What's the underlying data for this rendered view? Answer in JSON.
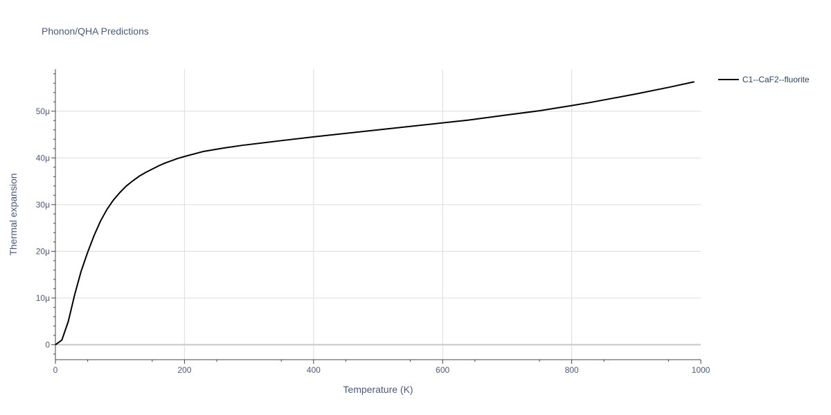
{
  "chart_data": {
    "type": "line",
    "title": "Phonon/QHA Predictions",
    "xlabel": "Temperature (K)",
    "ylabel": "Thermal expansion",
    "xlim": [
      0,
      1000
    ],
    "ylim": [
      -3.2e-06,
      5.9e-05
    ],
    "grid": true,
    "legend_position": "top-right outside",
    "x_ticks": [
      {
        "value": 0,
        "label": "0"
      },
      {
        "value": 200,
        "label": "200"
      },
      {
        "value": 400,
        "label": "400"
      },
      {
        "value": 600,
        "label": "600"
      },
      {
        "value": 800,
        "label": "800"
      },
      {
        "value": 1000,
        "label": "1000"
      }
    ],
    "y_ticks": [
      {
        "value": 0,
        "label": "0"
      },
      {
        "value": 1e-05,
        "label": "10μ"
      },
      {
        "value": 2e-05,
        "label": "20μ"
      },
      {
        "value": 3e-05,
        "label": "30μ"
      },
      {
        "value": 4e-05,
        "label": "40μ"
      },
      {
        "value": 5e-05,
        "label": "50μ"
      }
    ],
    "series": [
      {
        "name": "C1--CaF2--fluorite",
        "color": "#000000",
        "x": [
          0,
          10,
          20,
          30,
          40,
          50,
          60,
          70,
          80,
          90,
          100,
          110,
          120,
          130,
          140,
          150,
          160,
          170,
          180,
          190,
          200,
          230,
          260,
          290,
          350,
          400,
          500,
          600,
          640,
          700,
          750,
          800,
          830,
          900,
          950,
          990
        ],
        "y": [
          0,
          1e-06,
          5e-06,
          1.08e-05,
          1.58e-05,
          1.98e-05,
          2.34e-05,
          2.65e-05,
          2.9e-05,
          3.1e-05,
          3.26e-05,
          3.4e-05,
          3.51e-05,
          3.61e-05,
          3.69e-05,
          3.76e-05,
          3.83e-05,
          3.89e-05,
          3.94e-05,
          3.99e-05,
          4.03e-05,
          4.14e-05,
          4.21e-05,
          4.27e-05,
          4.37e-05,
          4.45e-05,
          4.6e-05,
          4.75e-05,
          4.81e-05,
          4.92e-05,
          5.01e-05,
          5.12e-05,
          5.19e-05,
          5.37e-05,
          5.51e-05,
          5.63e-05
        ]
      }
    ]
  }
}
